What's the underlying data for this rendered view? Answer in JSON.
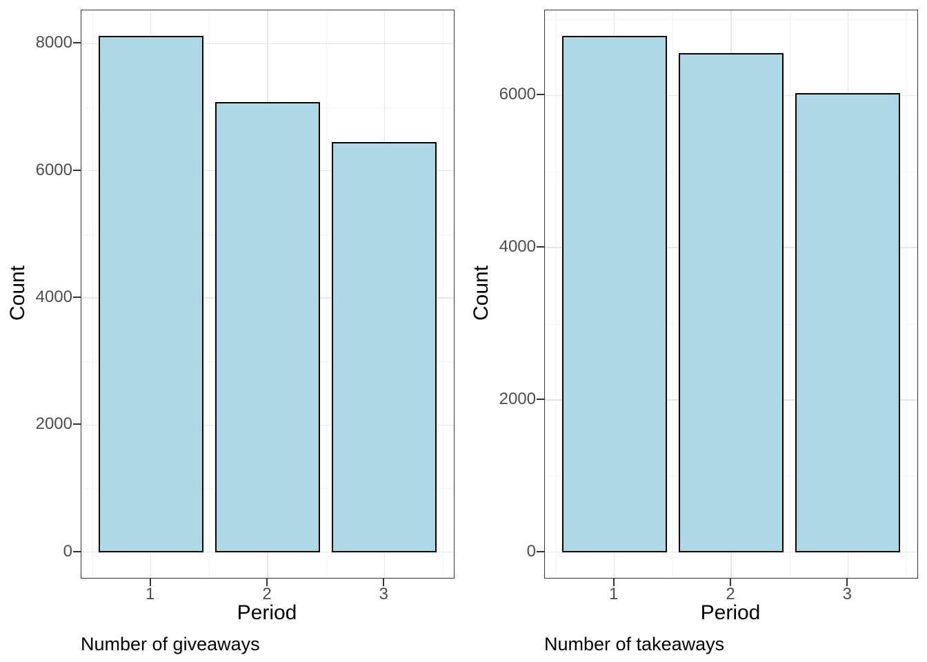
{
  "style": {
    "bar_fill": "#ADD8E6",
    "bar_stroke": "#000000",
    "panel_border": "#333333",
    "grid_major": "#E6E6E6",
    "grid_minor": "#F2F2F2",
    "tick_color": "#333333",
    "tick_label_color": "#4D4D4D",
    "text_color": "#000000",
    "background": "#FFFFFF"
  },
  "chart_data": [
    {
      "type": "bar",
      "caption": "Number of giveaways",
      "xlabel": "Period",
      "ylabel": "Count",
      "categories": [
        "1",
        "2",
        "3"
      ],
      "values": [
        8120,
        7080,
        6450
      ],
      "x_positions": [
        1,
        2,
        3
      ],
      "bar_width": 0.9,
      "xlim": [
        0.405,
        3.595
      ],
      "ylim": [
        -406,
        8526
      ],
      "y_major_ticks": [
        0,
        2000,
        4000,
        6000,
        8000
      ],
      "y_minor_gridlines": [
        1000,
        3000,
        5000,
        7000
      ],
      "x_minor_gridlines": [
        0.5,
        1.5,
        2.5,
        3.5
      ],
      "grid": "on",
      "legend": "none"
    },
    {
      "type": "bar",
      "caption": "Number of takeaways",
      "xlabel": "Period",
      "ylabel": "Count",
      "categories": [
        "1",
        "2",
        "3"
      ],
      "values": [
        6780,
        6560,
        6030
      ],
      "x_positions": [
        1,
        2,
        3
      ],
      "bar_width": 0.9,
      "xlim": [
        0.405,
        3.595
      ],
      "ylim": [
        -339,
        7119
      ],
      "y_major_ticks": [
        0,
        2000,
        4000,
        6000
      ],
      "y_minor_gridlines": [
        1000,
        3000,
        5000,
        7000
      ],
      "x_minor_gridlines": [
        0.5,
        1.5,
        2.5,
        3.5
      ],
      "grid": "on",
      "legend": "none"
    }
  ]
}
